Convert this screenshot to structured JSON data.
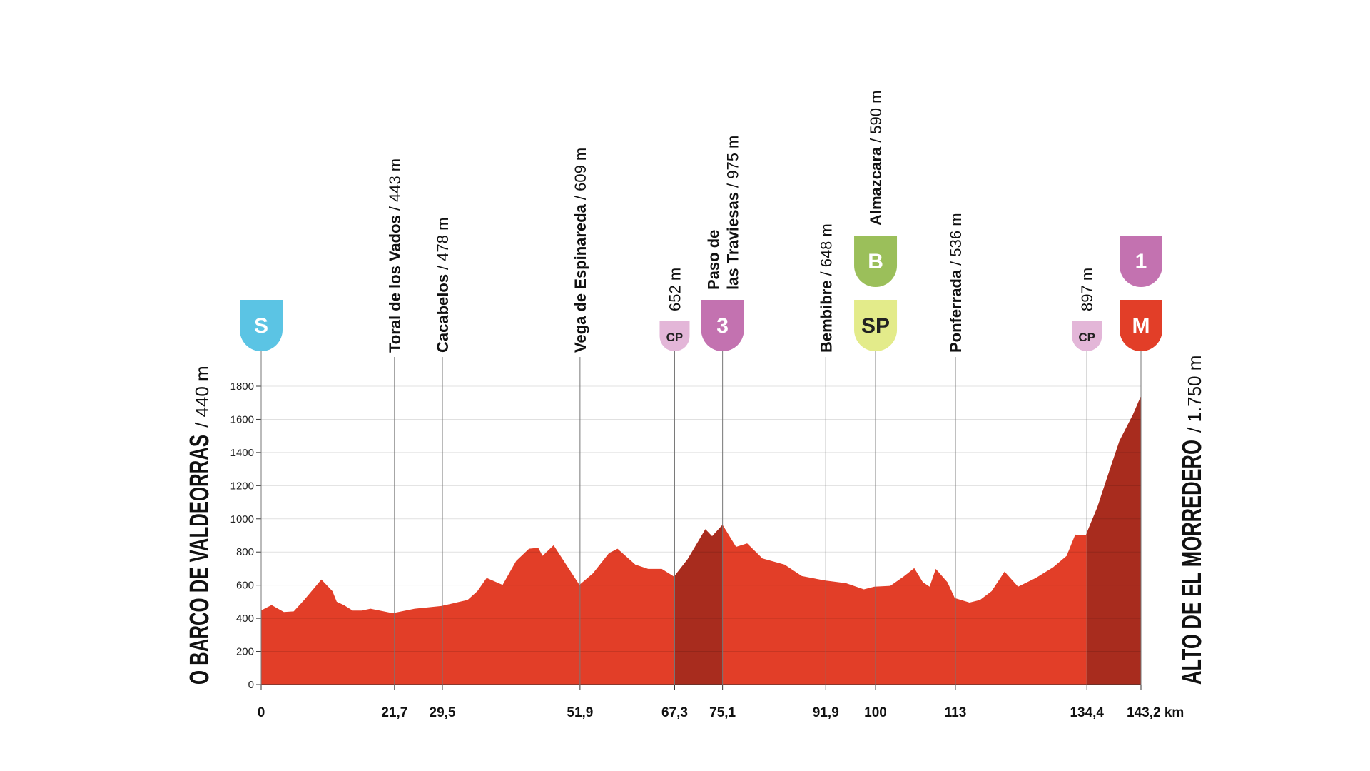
{
  "chart_data": {
    "type": "area",
    "start": {
      "name": "O BARCO DE VALDEORRAS",
      "altitude": "/ 440 m"
    },
    "finish": {
      "name": "ALTO DE EL MORREDERO",
      "altitude": "/ 1.750 m"
    },
    "x": [
      0,
      1.7,
      3.7,
      5.3,
      7.0,
      9.8,
      11.6,
      12.3,
      13.5,
      14.9,
      16.4,
      17.8,
      21.4,
      25.0,
      29.3,
      33.6,
      35.2,
      36.7,
      39.3,
      41.5,
      43.6,
      45.1,
      45.8,
      47.6,
      50.1,
      51.8,
      54.0,
      56.6,
      58.0,
      60.9,
      63.0,
      65.2,
      67.2,
      69.4,
      72.3,
      73.4,
      75.1,
      77.3,
      79.1,
      81.6,
      85.2,
      88.0,
      91.8,
      95.2,
      98.1,
      99.8,
      102.4,
      104.5,
      106.3,
      107.7,
      108.8,
      109.8,
      111.7,
      112.9,
      115.3,
      117.0,
      118.9,
      121.0,
      123.2,
      126.1,
      128.9,
      131.1,
      132.5,
      134.2,
      136.1,
      138.0,
      139.7,
      141.9,
      143.2
    ],
    "values": [
      448,
      480,
      438,
      442,
      511,
      634,
      564,
      500,
      479,
      447,
      447,
      458,
      431,
      458,
      474,
      511,
      564,
      644,
      602,
      746,
      820,
      825,
      777,
      841,
      698,
      602,
      671,
      793,
      820,
      724,
      698,
      698,
      652,
      756,
      937,
      895,
      964,
      831,
      852,
      761,
      724,
      655,
      628,
      612,
      575,
      591,
      596,
      650,
      703,
      618,
      591,
      698,
      618,
      522,
      495,
      511,
      564,
      682,
      591,
      644,
      708,
      777,
      905,
      900,
      1070,
      1283,
      1470,
      1629,
      1741
    ],
    "fill_color": "#e23e28",
    "climb_color": "#a82c1e",
    "climbs": [
      [
        67.3,
        75.1
      ],
      [
        134.4,
        143.2
      ]
    ],
    "xlim": [
      0,
      143.2
    ],
    "xticks": [
      0,
      {
        "value": 21.7,
        "label": "21,7"
      },
      {
        "value": 29.5,
        "label": "29,5"
      },
      {
        "value": 51.9,
        "label": "51,9"
      },
      {
        "value": 67.3,
        "label": "67,3"
      },
      {
        "value": 75.1,
        "label": "75,1"
      },
      {
        "value": 91.9,
        "label": "91,9"
      },
      100,
      113,
      {
        "value": 134.4,
        "label": "134,4"
      },
      {
        "value": 143.2,
        "label": "143,2 km"
      }
    ],
    "ylim": [
      0,
      1800
    ],
    "yticks": [
      0,
      200,
      400,
      600,
      800,
      1000,
      1200,
      1400,
      1600,
      1800
    ],
    "grid": true,
    "waypoints": [
      {
        "km": 0,
        "badges": [
          {
            "text": "S",
            "color": "#5bc4e4",
            "text_color": "#ffffff",
            "size": "large"
          }
        ]
      },
      {
        "km": 21.7,
        "name": "Toral de los Vados",
        "altitude": "/ 443 m"
      },
      {
        "km": 29.5,
        "name": "Cacabelos",
        "altitude": "/ 478 m"
      },
      {
        "km": 51.9,
        "name": "Vega de Espinareda",
        "altitude": "/ 609 m"
      },
      {
        "km": 67.3,
        "altitude": "652 m",
        "badges": [
          {
            "text": "CP",
            "color": "#e3b6d8",
            "text_color": "#222222",
            "size": "small"
          }
        ]
      },
      {
        "km": 75.1,
        "name": [
          "Paso de",
          "las Traviesas"
        ],
        "altitude": "/ 975 m",
        "badges": [
          {
            "text": "3",
            "color": "#c372b0",
            "text_color": "#ffffff",
            "size": "large"
          }
        ]
      },
      {
        "km": 91.9,
        "name": "Bembibre",
        "altitude": "/ 648 m"
      },
      {
        "km": 100,
        "name": "Almazcara",
        "altitude": "/ 590 m",
        "badges": [
          {
            "text": "SP",
            "color": "#e3eb8a",
            "text_color": "#222222",
            "size": "large"
          },
          {
            "text": "B",
            "color": "#9bbf5a",
            "text_color": "#ffffff",
            "size": "large"
          }
        ]
      },
      {
        "km": 113,
        "name": "Ponferrada",
        "altitude": "/ 536 m"
      },
      {
        "km": 134.4,
        "altitude": "897 m",
        "badges": [
          {
            "text": "CP",
            "color": "#e3b6d8",
            "text_color": "#222222",
            "size": "small"
          }
        ]
      },
      {
        "km": 143.2,
        "badges": [
          {
            "text": "M",
            "color": "#e23e28",
            "text_color": "#ffffff",
            "size": "large"
          },
          {
            "text": "1",
            "color": "#c372b0",
            "text_color": "#ffffff",
            "size": "large"
          }
        ]
      }
    ]
  }
}
